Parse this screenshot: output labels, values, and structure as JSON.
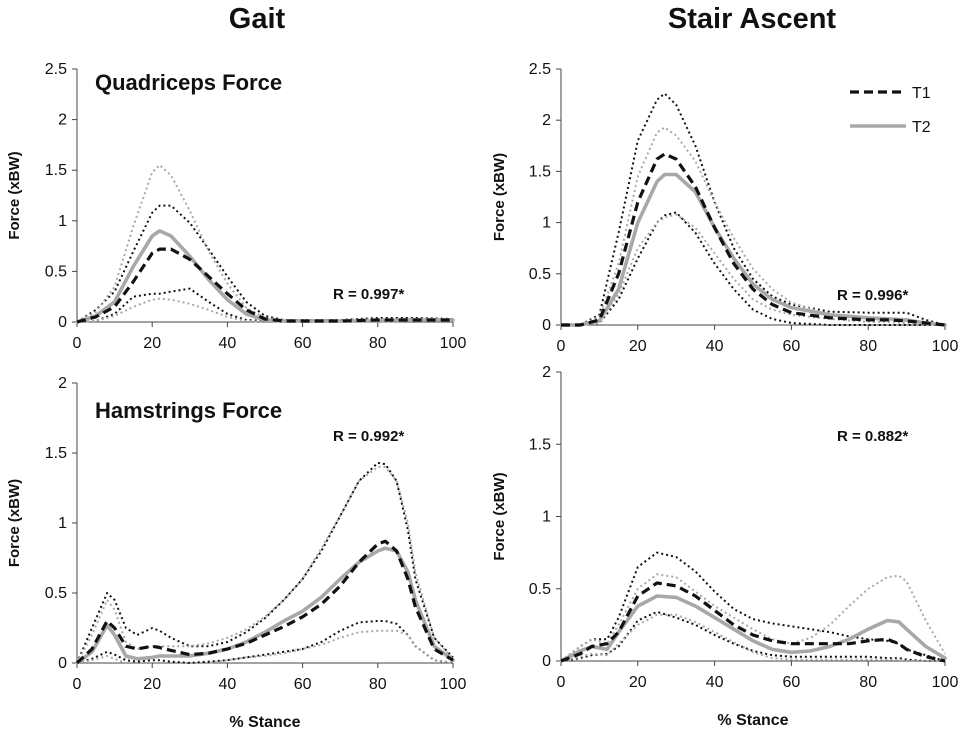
{
  "column_titles": [
    "Gait",
    "Stair Ascent"
  ],
  "chart_data": [
    {
      "type": "line",
      "panel": "gait-quadriceps",
      "title": "Quadriceps Force",
      "xlabel": "",
      "ylabel": "Force (xBW)",
      "xlim": [
        0,
        100
      ],
      "ylim": [
        0,
        2.5
      ],
      "xticks": [
        "0",
        "20",
        "40",
        "60",
        "80",
        "100"
      ],
      "yticks": [
        "0",
        "0.5",
        "1",
        "1.5",
        "2",
        "2.5"
      ],
      "annotation": "R = 0.997*",
      "x": [
        0,
        5,
        10,
        15,
        20,
        22,
        25,
        30,
        35,
        40,
        45,
        50,
        55,
        60,
        70,
        80,
        90,
        100
      ],
      "series": [
        {
          "name": "T1 mean",
          "style": "t1-mean",
          "values": [
            0,
            0.05,
            0.15,
            0.4,
            0.68,
            0.72,
            0.72,
            0.62,
            0.45,
            0.28,
            0.12,
            0.03,
            0.01,
            0.01,
            0.01,
            0.02,
            0.02,
            0.02
          ]
        },
        {
          "name": "T1 upper",
          "style": "t1-band",
          "values": [
            0,
            0.12,
            0.3,
            0.7,
            1.08,
            1.15,
            1.15,
            0.98,
            0.72,
            0.45,
            0.2,
            0.06,
            0.02,
            0.02,
            0.02,
            0.04,
            0.04,
            0.03
          ]
        },
        {
          "name": "T1 lower",
          "style": "t1-band",
          "values": [
            0,
            0.01,
            0.08,
            0.25,
            0.28,
            0.28,
            0.3,
            0.33,
            0.2,
            0.08,
            0.02,
            0.01,
            0,
            0,
            0,
            0,
            0,
            0
          ]
        },
        {
          "name": "T2 mean",
          "style": "t2-mean",
          "values": [
            0,
            0.06,
            0.2,
            0.55,
            0.85,
            0.9,
            0.85,
            0.65,
            0.42,
            0.22,
            0.08,
            0.02,
            0.01,
            0.01,
            0.01,
            0.01,
            0.02,
            0.02
          ]
        },
        {
          "name": "T2 upper",
          "style": "t2-band",
          "values": [
            0,
            0.1,
            0.35,
            0.95,
            1.48,
            1.55,
            1.45,
            1.1,
            0.7,
            0.38,
            0.14,
            0.04,
            0.02,
            0.02,
            0.02,
            0.03,
            0.03,
            0.03
          ]
        },
        {
          "name": "T2 lower",
          "style": "t2-band",
          "values": [
            0,
            0.01,
            0.06,
            0.15,
            0.22,
            0.23,
            0.22,
            0.18,
            0.12,
            0.05,
            0.01,
            0,
            0,
            0,
            0,
            0,
            0,
            0
          ]
        }
      ]
    },
    {
      "type": "line",
      "panel": "stair-quadriceps",
      "title": "",
      "xlabel": "",
      "ylabel": "Force (xBW)",
      "xlim": [
        0,
        100
      ],
      "ylim": [
        0,
        2.5
      ],
      "xticks": [
        "0",
        "20",
        "40",
        "60",
        "80",
        "100"
      ],
      "yticks": [
        "0",
        "0.5",
        "1",
        "1.5",
        "2",
        "2.5"
      ],
      "annotation": "R = 0.996*",
      "legend": [
        {
          "label": "T1",
          "style": "t1-mean"
        },
        {
          "label": "T2",
          "style": "t2-mean"
        }
      ],
      "x": [
        0,
        5,
        10,
        15,
        20,
        25,
        27,
        30,
        35,
        40,
        45,
        50,
        55,
        60,
        70,
        80,
        85,
        90,
        95,
        100
      ],
      "series": [
        {
          "name": "T1 mean",
          "style": "t1-mean",
          "values": [
            0,
            0,
            0.05,
            0.5,
            1.2,
            1.62,
            1.67,
            1.62,
            1.35,
            0.95,
            0.6,
            0.35,
            0.2,
            0.12,
            0.07,
            0.05,
            0.05,
            0.04,
            0.02,
            0
          ]
        },
        {
          "name": "T1 upper",
          "style": "t1-band",
          "values": [
            0,
            0,
            0.1,
            0.9,
            1.8,
            2.2,
            2.26,
            2.15,
            1.75,
            1.2,
            0.75,
            0.45,
            0.28,
            0.2,
            0.13,
            0.12,
            0.12,
            0.12,
            0.05,
            0
          ]
        },
        {
          "name": "T1 lower",
          "style": "t1-band",
          "values": [
            0,
            0,
            0.02,
            0.25,
            0.65,
            1.0,
            1.07,
            1.1,
            0.9,
            0.6,
            0.35,
            0.15,
            0.06,
            0.02,
            0,
            0,
            0,
            0,
            0,
            0
          ]
        },
        {
          "name": "T2 mean",
          "style": "t2-mean",
          "values": [
            0,
            0,
            0.04,
            0.35,
            1.0,
            1.4,
            1.47,
            1.47,
            1.3,
            0.95,
            0.65,
            0.4,
            0.25,
            0.17,
            0.1,
            0.07,
            0.06,
            0.05,
            0.02,
            0
          ]
        },
        {
          "name": "T2 upper",
          "style": "t2-band",
          "values": [
            0,
            0,
            0.08,
            0.6,
            1.45,
            1.88,
            1.93,
            1.85,
            1.6,
            1.2,
            0.85,
            0.55,
            0.35,
            0.22,
            0.1,
            0.06,
            0.05,
            0.05,
            0.03,
            0
          ]
        },
        {
          "name": "T2 lower",
          "style": "t2-band",
          "values": [
            0,
            0,
            0.02,
            0.3,
            0.75,
            1.0,
            1.05,
            1.08,
            0.95,
            0.7,
            0.45,
            0.25,
            0.15,
            0.1,
            0.06,
            0.03,
            0.03,
            0.02,
            0.01,
            0
          ]
        }
      ]
    },
    {
      "type": "line",
      "panel": "gait-hamstrings",
      "title": "Hamstrings Force",
      "xlabel": "% Stance",
      "ylabel": "Force (xBW)",
      "xlim": [
        0,
        100
      ],
      "ylim": [
        0,
        2
      ],
      "xticks": [
        "0",
        "20",
        "40",
        "60",
        "80",
        "100"
      ],
      "yticks": [
        "0",
        "0.5",
        "1",
        "1.5",
        "2"
      ],
      "annotation": "R = 0.992*",
      "x": [
        0,
        4,
        8,
        10,
        13,
        16,
        20,
        22,
        25,
        30,
        35,
        40,
        45,
        50,
        55,
        60,
        65,
        70,
        75,
        80,
        82,
        85,
        88,
        90,
        95,
        100
      ],
      "series": [
        {
          "name": "T1 mean",
          "style": "t1-mean",
          "values": [
            0,
            0.1,
            0.3,
            0.25,
            0.12,
            0.1,
            0.12,
            0.11,
            0.09,
            0.06,
            0.07,
            0.1,
            0.14,
            0.2,
            0.26,
            0.33,
            0.42,
            0.55,
            0.72,
            0.85,
            0.87,
            0.8,
            0.6,
            0.4,
            0.1,
            0.02
          ]
        },
        {
          "name": "T1 upper",
          "style": "t1-band",
          "values": [
            0,
            0.25,
            0.5,
            0.45,
            0.25,
            0.2,
            0.25,
            0.23,
            0.18,
            0.12,
            0.12,
            0.15,
            0.22,
            0.32,
            0.45,
            0.6,
            0.8,
            1.05,
            1.3,
            1.43,
            1.42,
            1.3,
            0.95,
            0.6,
            0.18,
            0.04
          ]
        },
        {
          "name": "T1 lower",
          "style": "t1-band",
          "values": [
            0,
            0.03,
            0.08,
            0.06,
            0.02,
            0.01,
            0.02,
            0.02,
            0.01,
            0,
            0.01,
            0.02,
            0.04,
            0.06,
            0.08,
            0.1,
            0.15,
            0.23,
            0.29,
            0.3,
            0.3,
            0.28,
            0.2,
            0.12,
            0.02,
            0
          ]
        },
        {
          "name": "T2 mean",
          "style": "t2-mean",
          "values": [
            0,
            0.08,
            0.27,
            0.2,
            0.05,
            0.03,
            0.04,
            0.05,
            0.05,
            0.05,
            0.07,
            0.1,
            0.15,
            0.22,
            0.3,
            0.37,
            0.47,
            0.6,
            0.72,
            0.8,
            0.82,
            0.8,
            0.65,
            0.45,
            0.12,
            0.02
          ]
        },
        {
          "name": "T2 upper",
          "style": "t2-band",
          "values": [
            0,
            0.2,
            0.45,
            0.38,
            0.15,
            0.1,
            0.12,
            0.12,
            0.12,
            0.12,
            0.14,
            0.18,
            0.24,
            0.33,
            0.45,
            0.6,
            0.82,
            1.05,
            1.3,
            1.4,
            1.4,
            1.3,
            1.0,
            0.65,
            0.18,
            0.03
          ]
        },
        {
          "name": "T2 lower",
          "style": "t2-band",
          "values": [
            0,
            0.02,
            0.05,
            0.03,
            0,
            0,
            0,
            0,
            0,
            0,
            0,
            0.02,
            0.04,
            0.05,
            0.07,
            0.1,
            0.13,
            0.18,
            0.22,
            0.23,
            0.23,
            0.23,
            0.2,
            0.12,
            0.02,
            0
          ]
        }
      ]
    },
    {
      "type": "line",
      "panel": "stair-hamstrings",
      "title": "",
      "xlabel": "% Stance",
      "ylabel": "Force (xBW)",
      "xlim": [
        0,
        100
      ],
      "ylim": [
        0,
        2
      ],
      "xticks": [
        "0",
        "20",
        "40",
        "60",
        "80",
        "100"
      ],
      "yticks": [
        "0",
        "0.5",
        "1",
        "1.5",
        "2"
      ],
      "annotation": "R = 0.882*",
      "x": [
        0,
        5,
        8,
        12,
        15,
        20,
        25,
        30,
        35,
        40,
        45,
        50,
        55,
        60,
        65,
        70,
        75,
        80,
        85,
        88,
        90,
        95,
        100
      ],
      "series": [
        {
          "name": "T1 mean",
          "style": "t1-mean",
          "values": [
            0,
            0.05,
            0.1,
            0.12,
            0.2,
            0.45,
            0.54,
            0.52,
            0.45,
            0.35,
            0.25,
            0.18,
            0.14,
            0.12,
            0.12,
            0.12,
            0.12,
            0.14,
            0.15,
            0.12,
            0.08,
            0.03,
            0
          ]
        },
        {
          "name": "T1 upper",
          "style": "t1-band",
          "values": [
            0,
            0.1,
            0.15,
            0.15,
            0.3,
            0.65,
            0.75,
            0.72,
            0.62,
            0.48,
            0.36,
            0.29,
            0.26,
            0.24,
            0.22,
            0.2,
            0.17,
            0.15,
            0.14,
            0.12,
            0.08,
            0.04,
            0
          ]
        },
        {
          "name": "T1 lower",
          "style": "t1-band",
          "values": [
            0,
            0.02,
            0.04,
            0.05,
            0.1,
            0.28,
            0.34,
            0.3,
            0.25,
            0.18,
            0.12,
            0.07,
            0.04,
            0.03,
            0.03,
            0.03,
            0.03,
            0.03,
            0.02,
            0.02,
            0.01,
            0,
            0
          ]
        },
        {
          "name": "T2 mean",
          "style": "t2-mean",
          "values": [
            0,
            0.07,
            0.1,
            0.08,
            0.2,
            0.38,
            0.45,
            0.44,
            0.38,
            0.3,
            0.22,
            0.14,
            0.08,
            0.06,
            0.07,
            0.1,
            0.15,
            0.22,
            0.28,
            0.27,
            0.22,
            0.1,
            0.02
          ]
        },
        {
          "name": "T2 upper",
          "style": "t2-band",
          "values": [
            0,
            0.1,
            0.15,
            0.12,
            0.25,
            0.5,
            0.6,
            0.58,
            0.48,
            0.38,
            0.3,
            0.22,
            0.15,
            0.12,
            0.16,
            0.25,
            0.38,
            0.5,
            0.58,
            0.59,
            0.55,
            0.28,
            0.05
          ]
        },
        {
          "name": "T2 lower",
          "style": "t2-band",
          "values": [
            0,
            0.03,
            0.05,
            0.04,
            0.12,
            0.25,
            0.32,
            0.32,
            0.27,
            0.2,
            0.13,
            0.06,
            0.02,
            0.01,
            0.01,
            0.01,
            0.01,
            0.01,
            0.01,
            0.01,
            0,
            0,
            0
          ]
        }
      ]
    }
  ],
  "colors": {
    "t1": "#111111",
    "t2": "#a8a8a8",
    "axis": "#444444"
  }
}
